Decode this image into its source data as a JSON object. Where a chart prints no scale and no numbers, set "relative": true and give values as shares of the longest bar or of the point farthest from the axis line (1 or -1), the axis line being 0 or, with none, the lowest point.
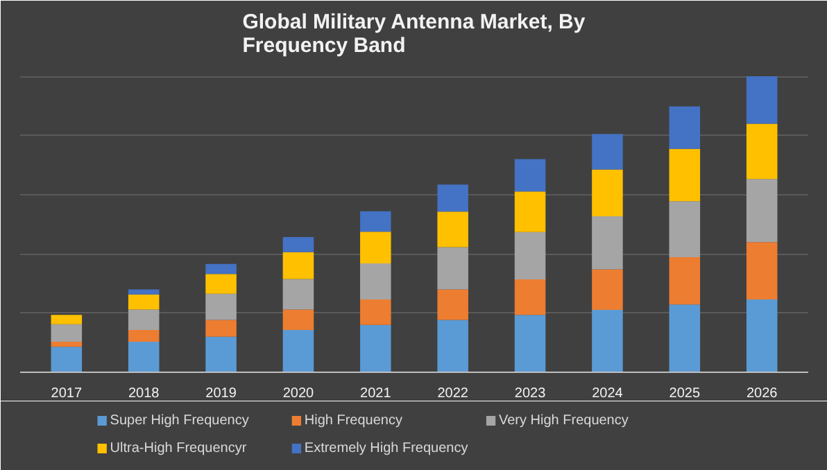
{
  "chart_data": {
    "type": "bar",
    "title": "Global Military Antenna Market, By Frequency Band",
    "relative": true,
    "stacked": true,
    "grid": "y",
    "legend": "bottom",
    "categories": [
      "2017",
      "2018",
      "2019",
      "2020",
      "2021",
      "2022",
      "2023",
      "2024",
      "2025",
      "2026"
    ],
    "series": [
      {
        "name": "Super High Frequency",
        "color": "#5b9bd5",
        "values": [
          0.086,
          0.103,
          0.12,
          0.143,
          0.16,
          0.177,
          0.194,
          0.211,
          0.229,
          0.246
        ]
      },
      {
        "name": "High Frequency",
        "color": "#ed7d31",
        "values": [
          0.017,
          0.04,
          0.057,
          0.069,
          0.086,
          0.103,
          0.12,
          0.137,
          0.16,
          0.194
        ]
      },
      {
        "name": "Very High Frequency",
        "color": "#a5a5a5",
        "values": [
          0.059,
          0.069,
          0.088,
          0.103,
          0.122,
          0.143,
          0.16,
          0.179,
          0.189,
          0.213
        ]
      },
      {
        "name": "Ultra-High Frequencyr",
        "color": "#ffc000",
        "values": [
          0.032,
          0.051,
          0.067,
          0.091,
          0.107,
          0.12,
          0.137,
          0.158,
          0.177,
          0.187
        ]
      },
      {
        "name": "Extremely High Frequency",
        "color": "#4472c4",
        "values": [
          0,
          0.017,
          0.034,
          0.051,
          0.069,
          0.091,
          0.109,
          0.12,
          0.143,
          0.16
        ]
      }
    ]
  }
}
